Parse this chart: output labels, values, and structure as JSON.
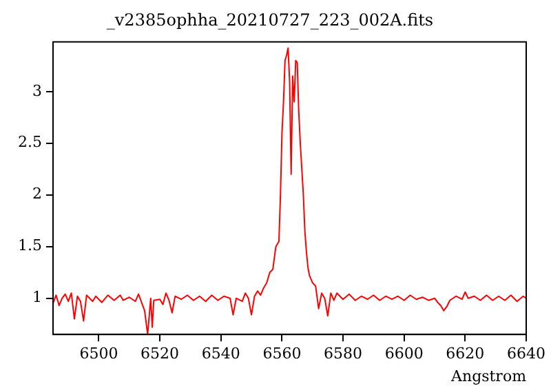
{
  "chart_data": {
    "type": "line",
    "title": "_v2385ophha_20210727_223_002A.fits",
    "xlabel": "Angstrom",
    "x": [
      6485,
      6486,
      6487,
      6488,
      6489,
      6490,
      6491,
      6492,
      6493,
      6494,
      6495,
      6496,
      6498,
      6499,
      6501,
      6503,
      6505,
      6507,
      6508,
      6510,
      6512,
      6513,
      6515,
      6516,
      6517,
      6517.5,
      6518,
      6520,
      6521,
      6522,
      6523,
      6524,
      6525,
      6527,
      6529,
      6531,
      6533,
      6535,
      6537,
      6539,
      6541,
      6543,
      6544,
      6545,
      6547,
      6548,
      6549,
      6550,
      6551,
      6552,
      6553,
      6554,
      6555,
      6556,
      6557,
      6558,
      6559,
      6559.5,
      6560,
      6560.5,
      6561,
      6561.5,
      6562,
      6562.5,
      6563,
      6563.5,
      6564,
      6564.5,
      6565,
      6565.5,
      6566,
      6567,
      6567.5,
      6568,
      6568.5,
      6569,
      6570,
      6571,
      6572,
      6573,
      6574,
      6575,
      6576,
      6577,
      6578,
      6580,
      6582,
      6584,
      6586,
      6588,
      6590,
      6592,
      6594,
      6596,
      6598,
      6600,
      6602,
      6604,
      6606,
      6608,
      6610,
      6611,
      6612,
      6613,
      6614,
      6615,
      6617,
      6619,
      6620,
      6621,
      6623,
      6625,
      6627,
      6629,
      6631,
      6633,
      6635,
      6637,
      6639,
      6640
    ],
    "series": [
      {
        "color": "#ff0000",
        "values": [
          0.95,
          1.03,
          0.93,
          1.0,
          1.04,
          0.97,
          1.05,
          0.8,
          1.02,
          0.97,
          0.78,
          1.03,
          0.97,
          1.02,
          0.96,
          1.03,
          0.98,
          1.03,
          0.98,
          1.01,
          0.97,
          1.04,
          0.88,
          0.65,
          1.0,
          0.72,
          0.98,
          0.99,
          0.94,
          1.05,
          0.98,
          0.86,
          1.02,
          0.99,
          1.03,
          0.98,
          1.02,
          0.97,
          1.03,
          0.98,
          1.02,
          1.0,
          0.84,
          1.0,
          0.97,
          1.05,
          1.0,
          0.84,
          1.02,
          1.07,
          1.03,
          1.1,
          1.15,
          1.25,
          1.28,
          1.5,
          1.55,
          2.0,
          2.6,
          2.9,
          3.3,
          3.35,
          3.42,
          3.1,
          2.2,
          3.15,
          2.9,
          3.3,
          3.28,
          2.8,
          2.5,
          2.0,
          1.65,
          1.45,
          1.3,
          1.22,
          1.15,
          1.12,
          0.9,
          1.05,
          1.0,
          0.83,
          1.05,
          0.98,
          1.05,
          0.99,
          1.04,
          0.98,
          1.02,
          0.99,
          1.03,
          0.98,
          1.02,
          0.99,
          1.02,
          0.98,
          1.03,
          0.99,
          1.01,
          0.98,
          1.0,
          0.96,
          0.93,
          0.88,
          0.92,
          0.98,
          1.02,
          0.99,
          1.06,
          1.0,
          1.02,
          0.98,
          1.03,
          0.98,
          1.02,
          0.98,
          1.03,
          0.97,
          1.02,
          1.0
        ]
      }
    ],
    "xlim": [
      6485,
      6640
    ],
    "xticks": [
      6500,
      6520,
      6540,
      6560,
      6580,
      6600,
      6620,
      6640
    ],
    "ylim": [
      0.65,
      3.48
    ],
    "yticks": [
      1,
      1.5,
      2,
      2.5,
      3
    ],
    "grid": false,
    "legend": false,
    "marker": "none",
    "line_style": "solid"
  }
}
